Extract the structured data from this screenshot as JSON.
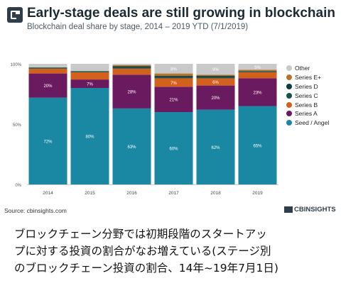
{
  "header": {
    "title": "Early-stage deals are still growing in blockchain",
    "subtitle": "Blockchain deal share by stage, 2014 – 2019 YTD (7/1/2019)"
  },
  "footer": {
    "source": "Source: cbinsights.com",
    "brand": "CBINSIGHTS"
  },
  "caption": {
    "lines": [
      "ブロックチェーン分野では初期段階のスタートアッ",
      "プに対する投資の割合がなお増えている(ステージ別",
      "のブロックチェーン投資の割合、14年~19年7月1日)"
    ]
  },
  "chart_data": {
    "type": "bar",
    "stacked": true,
    "categories": [
      "2014",
      "2015",
      "2016",
      "2017",
      "2018",
      "2019"
    ],
    "ylim": [
      0,
      100
    ],
    "yticks": [
      "0%",
      "50%",
      "100%"
    ],
    "legend_position": "right",
    "series": [
      {
        "name": "Seed / Angel",
        "color": "#1b88a3",
        "values": [
          72,
          80,
          63,
          60,
          62,
          65
        ],
        "labels": [
          "72%",
          "80%",
          "63%",
          "60%",
          "62%",
          "65%"
        ]
      },
      {
        "name": "Series A",
        "color": "#6a1a5e",
        "values": [
          20,
          7,
          28,
          21,
          20,
          23
        ],
        "labels": [
          "20%",
          "7%",
          "28%",
          "21%",
          "20%",
          "23%"
        ]
      },
      {
        "name": "Series B",
        "color": "#d4601e",
        "values": [
          4,
          6,
          5,
          7,
          6,
          5
        ],
        "labels": [
          "",
          "",
          "",
          "7%",
          "6%",
          ""
        ]
      },
      {
        "name": "Series C",
        "color": "#15514a",
        "values": [
          1,
          1,
          1,
          1,
          1,
          1
        ],
        "labels": [
          "",
          "",
          "",
          "",
          "",
          ""
        ]
      },
      {
        "name": "Series D",
        "color": "#0d3b3d",
        "values": [
          0,
          0,
          1,
          1,
          1,
          0
        ],
        "labels": [
          "",
          "",
          "",
          "",
          "",
          ""
        ]
      },
      {
        "name": "Series E+",
        "color": "#b8732a",
        "values": [
          0,
          0,
          1,
          2,
          1,
          1
        ],
        "labels": [
          "",
          "",
          "",
          "",
          "",
          ""
        ]
      },
      {
        "name": "Other",
        "color": "#c9c9c9",
        "values": [
          3,
          6,
          1,
          8,
          9,
          5
        ],
        "labels": [
          "",
          "",
          "",
          "8%",
          "9%",
          "5%"
        ]
      }
    ],
    "legend_order": [
      "Other",
      "Series E+",
      "Series D",
      "Series C",
      "Series B",
      "Series A",
      "Seed / Angel"
    ]
  }
}
